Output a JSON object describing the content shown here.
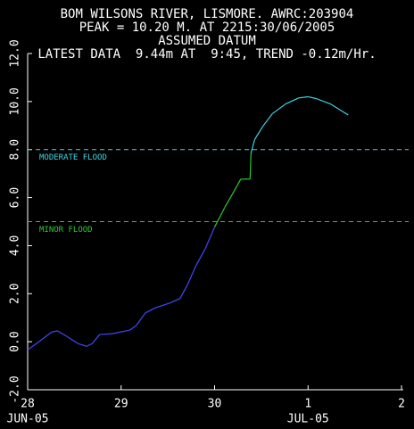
{
  "chart_data": {
    "type": "line",
    "title_lines": [
      "BOM WILSONS RIVER, LISMORE. AWRC:203904",
      "PEAK = 10.20 M. AT 2215:30/06/2005",
      "ASSUMED DATUM",
      "LATEST DATA  9.44m AT  9:45, TREND -0.12m/Hr."
    ],
    "x": [
      0,
      0.13,
      0.26,
      0.32,
      0.42,
      0.54,
      0.63,
      0.69,
      0.77,
      0.9,
      1.09,
      1.16,
      1.26,
      1.37,
      1.52,
      1.63,
      1.71,
      1.8,
      1.9,
      2.0,
      2.11,
      2.21,
      2.28,
      2.38,
      2.39,
      2.43,
      2.52,
      2.62,
      2.76,
      2.9,
      3.0,
      3.09,
      3.24,
      3.43
    ],
    "series": [
      {
        "color": "#4646ff",
        "values": [
          -0.34,
          0.03,
          0.41,
          0.45,
          0.22,
          -0.08,
          -0.19,
          -0.08,
          0.3,
          0.33,
          0.48,
          0.67,
          1.2,
          1.42,
          1.61,
          1.8,
          2.37,
          3.16,
          3.87,
          4.77,
          5.6,
          6.28,
          6.77,
          6.77,
          7.86,
          8.43,
          8.99,
          9.5,
          9.9,
          10.15,
          10.2,
          10.12,
          9.9,
          9.44
        ]
      }
    ],
    "levels": [
      {
        "name": "MODERATE FLOOD",
        "value": 8,
        "color": "#3ad6e6"
      },
      {
        "name": "MINOR FLOOD",
        "value": 5,
        "color": "#2ec82e"
      }
    ],
    "xlim": [
      0,
      4
    ],
    "xticks": [
      {
        "value": 0,
        "label": "28"
      },
      {
        "value": 1,
        "label": "29"
      },
      {
        "value": 2,
        "label": "30"
      },
      {
        "value": 3,
        "label": "1"
      },
      {
        "value": 4,
        "label": "2"
      }
    ],
    "x_month_labels": [
      {
        "value": 0,
        "label": "JUN-05"
      },
      {
        "value": 3,
        "label": "JUL-05"
      }
    ],
    "ylim": [
      -2,
      12
    ],
    "yticks": [
      {
        "value": -2,
        "label": "-2.0"
      },
      {
        "value": 0,
        "label": "0.0"
      },
      {
        "value": 2,
        "label": "2.0"
      },
      {
        "value": 4,
        "label": "4.0"
      },
      {
        "value": 6,
        "label": "6.0"
      },
      {
        "value": 8,
        "label": "8.0"
      },
      {
        "value": 10,
        "label": "10.0"
      },
      {
        "value": 12,
        "label": "12.0"
      }
    ]
  }
}
